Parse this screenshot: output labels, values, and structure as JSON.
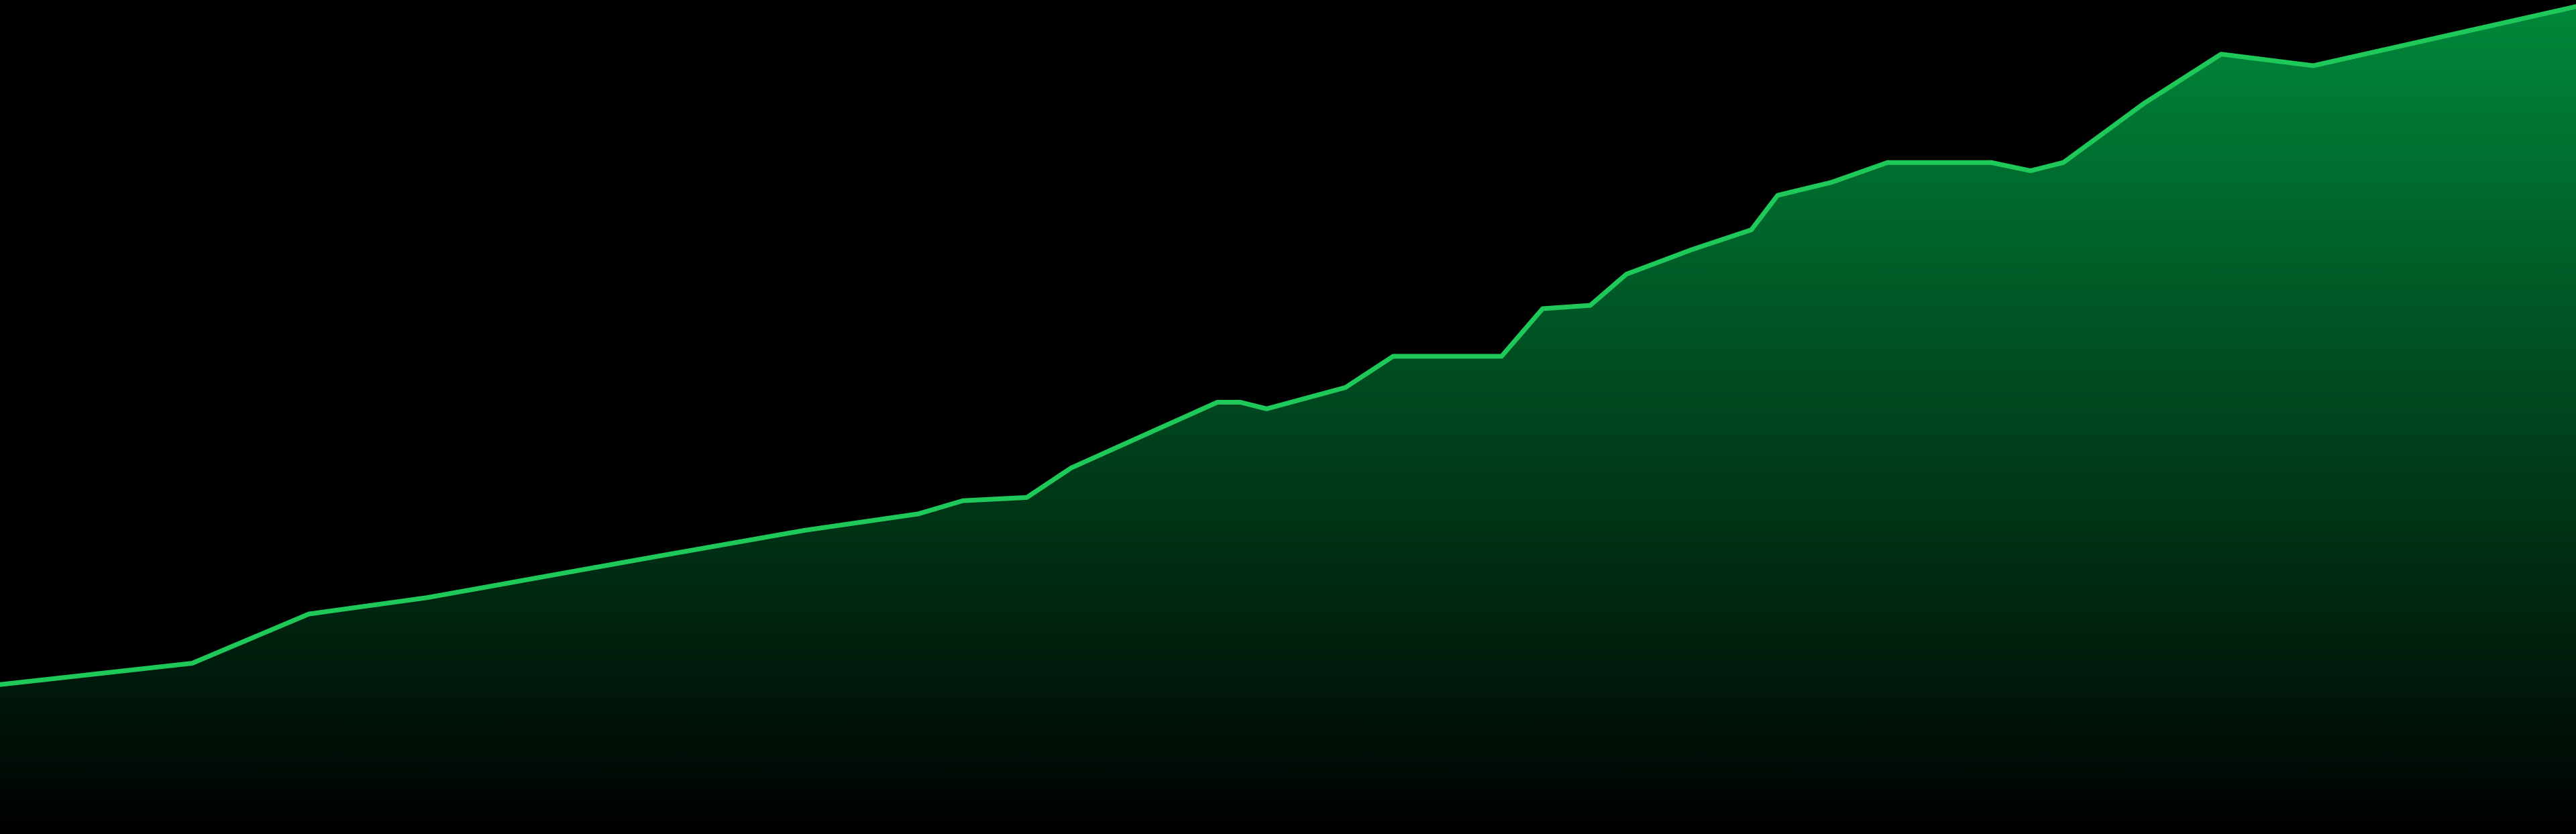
{
  "colors": {
    "background": "#000000",
    "line": "#1ec95a",
    "fill_top": "#00883a",
    "fill_bottom": "#000000"
  },
  "chart_data": {
    "type": "area",
    "title": "",
    "xlabel": "",
    "ylabel": "",
    "grid": false,
    "legend": "none",
    "xlim": [
      0,
      1568
    ],
    "ylim": [
      0,
      508
    ],
    "x": [
      0,
      117,
      188,
      260,
      388,
      490,
      559,
      586,
      625,
      652,
      741,
      755,
      771,
      819,
      848,
      914,
      939,
      968,
      990,
      1030,
      1066,
      1082,
      1115,
      1149,
      1212,
      1236,
      1256,
      1305,
      1352,
      1408,
      1568
    ],
    "series": [
      {
        "values": [
          91,
          104,
          134,
          144,
          167,
          185,
          195,
          203,
          205,
          223,
          263,
          263,
          259,
          272,
          291,
          291,
          320,
          322,
          341,
          356,
          368,
          389,
          397,
          409,
          409,
          404,
          409,
          445,
          475,
          468,
          504
        ]
      }
    ]
  }
}
